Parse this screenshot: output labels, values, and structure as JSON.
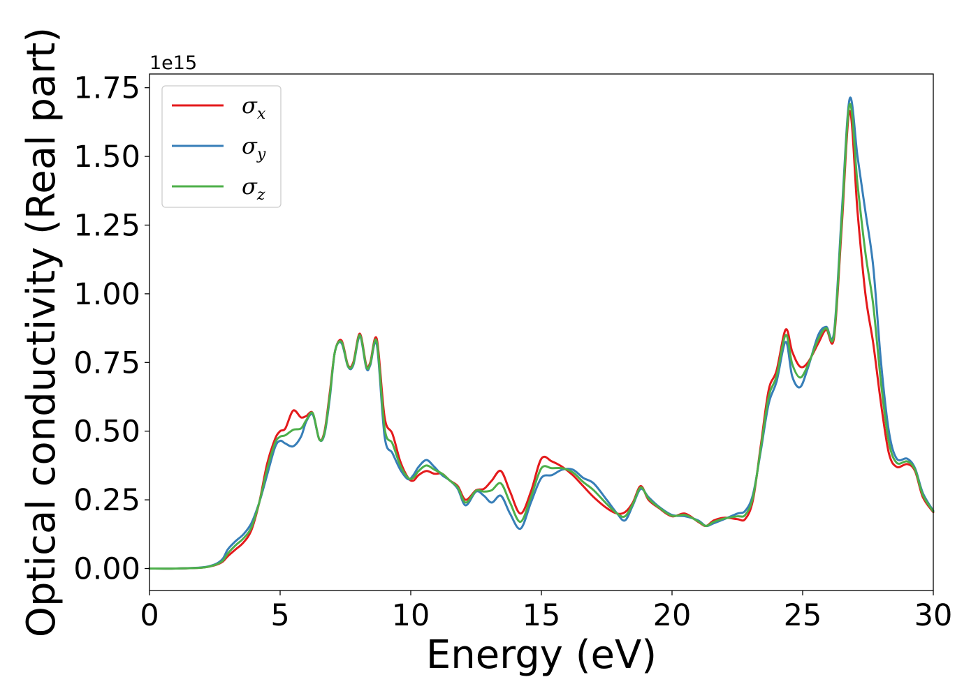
{
  "chart_data": {
    "type": "line",
    "title": "",
    "xlabel": "Energy (eV)",
    "ylabel": "Optical conductivity (Real part)",
    "y_offset_label": "1e15",
    "xlim": [
      0,
      30
    ],
    "ylim": [
      -0.08,
      1.8
    ],
    "x_ticks": [
      0,
      5,
      10,
      15,
      20,
      25,
      30
    ],
    "x_tick_labels": [
      "0",
      "5",
      "10",
      "15",
      "20",
      "25",
      "30"
    ],
    "y_ticks": [
      0,
      0.25,
      0.5,
      0.75,
      1.0,
      1.25,
      1.5,
      1.75
    ],
    "y_tick_labels": [
      "0.00",
      "0.25",
      "0.50",
      "0.75",
      "1.00",
      "1.25",
      "1.50",
      "1.75"
    ],
    "grid": false,
    "legend_position": "top-left",
    "x": [
      0,
      1,
      2,
      2.5,
      2.8,
      3,
      3.3,
      3.6,
      3.9,
      4.2,
      4.5,
      4.8,
      5,
      5.2,
      5.5,
      5.8,
      6,
      6.25,
      6.5,
      6.7,
      6.9,
      7.1,
      7.35,
      7.6,
      7.8,
      8.05,
      8.3,
      8.45,
      8.7,
      9,
      9.3,
      9.6,
      9.9,
      10.1,
      10.3,
      10.6,
      10.9,
      11.2,
      11.5,
      11.8,
      12.1,
      12.5,
      12.8,
      13.1,
      13.45,
      13.8,
      14.2,
      14.6,
      15,
      15.4,
      15.8,
      16.2,
      16.6,
      17,
      17.5,
      17.9,
      18.2,
      18.5,
      18.8,
      19.1,
      19.5,
      20,
      20.5,
      21,
      21.3,
      21.6,
      22,
      22.5,
      22.8,
      23.1,
      23.4,
      23.7,
      24,
      24.35,
      24.6,
      24.9,
      25.2,
      25.6,
      25.9,
      26.2,
      26.5,
      26.8,
      27.1,
      27.4,
      27.7,
      28,
      28.3,
      28.6,
      29,
      29.3,
      29.6,
      30
    ],
    "series": [
      {
        "name": "σx",
        "color": "#e41a1c",
        "values": [
          0,
          0,
          0.003,
          0.012,
          0.025,
          0.045,
          0.07,
          0.095,
          0.14,
          0.24,
          0.38,
          0.47,
          0.5,
          0.51,
          0.575,
          0.55,
          0.555,
          0.565,
          0.47,
          0.5,
          0.64,
          0.79,
          0.83,
          0.74,
          0.75,
          0.855,
          0.74,
          0.75,
          0.835,
          0.55,
          0.49,
          0.39,
          0.33,
          0.32,
          0.34,
          0.355,
          0.345,
          0.345,
          0.32,
          0.3,
          0.25,
          0.285,
          0.29,
          0.32,
          0.355,
          0.28,
          0.2,
          0.28,
          0.4,
          0.39,
          0.37,
          0.34,
          0.3,
          0.26,
          0.22,
          0.2,
          0.205,
          0.24,
          0.3,
          0.25,
          0.22,
          0.19,
          0.2,
          0.17,
          0.155,
          0.175,
          0.185,
          0.18,
          0.18,
          0.25,
          0.45,
          0.65,
          0.72,
          0.87,
          0.79,
          0.735,
          0.75,
          0.82,
          0.87,
          0.84,
          1.25,
          1.665,
          1.3,
          1.0,
          0.82,
          0.6,
          0.42,
          0.37,
          0.38,
          0.355,
          0.26,
          0.205
        ]
      },
      {
        "name": "σy",
        "color": "#377eb8",
        "values": [
          0,
          0,
          0.004,
          0.015,
          0.035,
          0.07,
          0.1,
          0.125,
          0.165,
          0.24,
          0.34,
          0.44,
          0.465,
          0.455,
          0.445,
          0.48,
          0.535,
          0.56,
          0.47,
          0.49,
          0.62,
          0.79,
          0.82,
          0.735,
          0.74,
          0.845,
          0.73,
          0.74,
          0.815,
          0.48,
          0.42,
          0.36,
          0.325,
          0.34,
          0.37,
          0.395,
          0.37,
          0.34,
          0.32,
          0.29,
          0.23,
          0.28,
          0.265,
          0.24,
          0.265,
          0.2,
          0.145,
          0.24,
          0.33,
          0.34,
          0.36,
          0.36,
          0.33,
          0.31,
          0.25,
          0.2,
          0.175,
          0.23,
          0.29,
          0.26,
          0.225,
          0.195,
          0.19,
          0.175,
          0.155,
          0.165,
          0.18,
          0.2,
          0.21,
          0.27,
          0.43,
          0.6,
          0.68,
          0.825,
          0.7,
          0.66,
          0.73,
          0.85,
          0.88,
          0.86,
          1.3,
          1.71,
          1.5,
          1.3,
          1.1,
          0.75,
          0.5,
          0.4,
          0.4,
          0.365,
          0.275,
          0.21
        ]
      },
      {
        "name": "σz",
        "color": "#4daf4a",
        "values": [
          0,
          0,
          0.003,
          0.013,
          0.028,
          0.055,
          0.085,
          0.11,
          0.15,
          0.24,
          0.36,
          0.455,
          0.48,
          0.485,
          0.505,
          0.51,
          0.54,
          0.565,
          0.47,
          0.495,
          0.63,
          0.79,
          0.825,
          0.737,
          0.745,
          0.85,
          0.735,
          0.745,
          0.825,
          0.51,
          0.455,
          0.375,
          0.33,
          0.33,
          0.355,
          0.375,
          0.36,
          0.345,
          0.32,
          0.295,
          0.24,
          0.283,
          0.28,
          0.285,
          0.31,
          0.24,
          0.17,
          0.26,
          0.365,
          0.365,
          0.365,
          0.35,
          0.315,
          0.285,
          0.235,
          0.2,
          0.19,
          0.235,
          0.295,
          0.255,
          0.222,
          0.192,
          0.195,
          0.172,
          0.155,
          0.17,
          0.182,
          0.19,
          0.195,
          0.26,
          0.44,
          0.625,
          0.7,
          0.85,
          0.745,
          0.695,
          0.74,
          0.835,
          0.875,
          0.85,
          1.275,
          1.69,
          1.4,
          1.15,
          0.96,
          0.675,
          0.46,
          0.385,
          0.39,
          0.36,
          0.268,
          0.207
        ]
      }
    ],
    "legend_entries": [
      {
        "symbol": "σ",
        "subscript": "x",
        "color": "#e41a1c"
      },
      {
        "symbol": "σ",
        "subscript": "y",
        "color": "#377eb8"
      },
      {
        "symbol": "σ",
        "subscript": "z",
        "color": "#4daf4a"
      }
    ]
  }
}
